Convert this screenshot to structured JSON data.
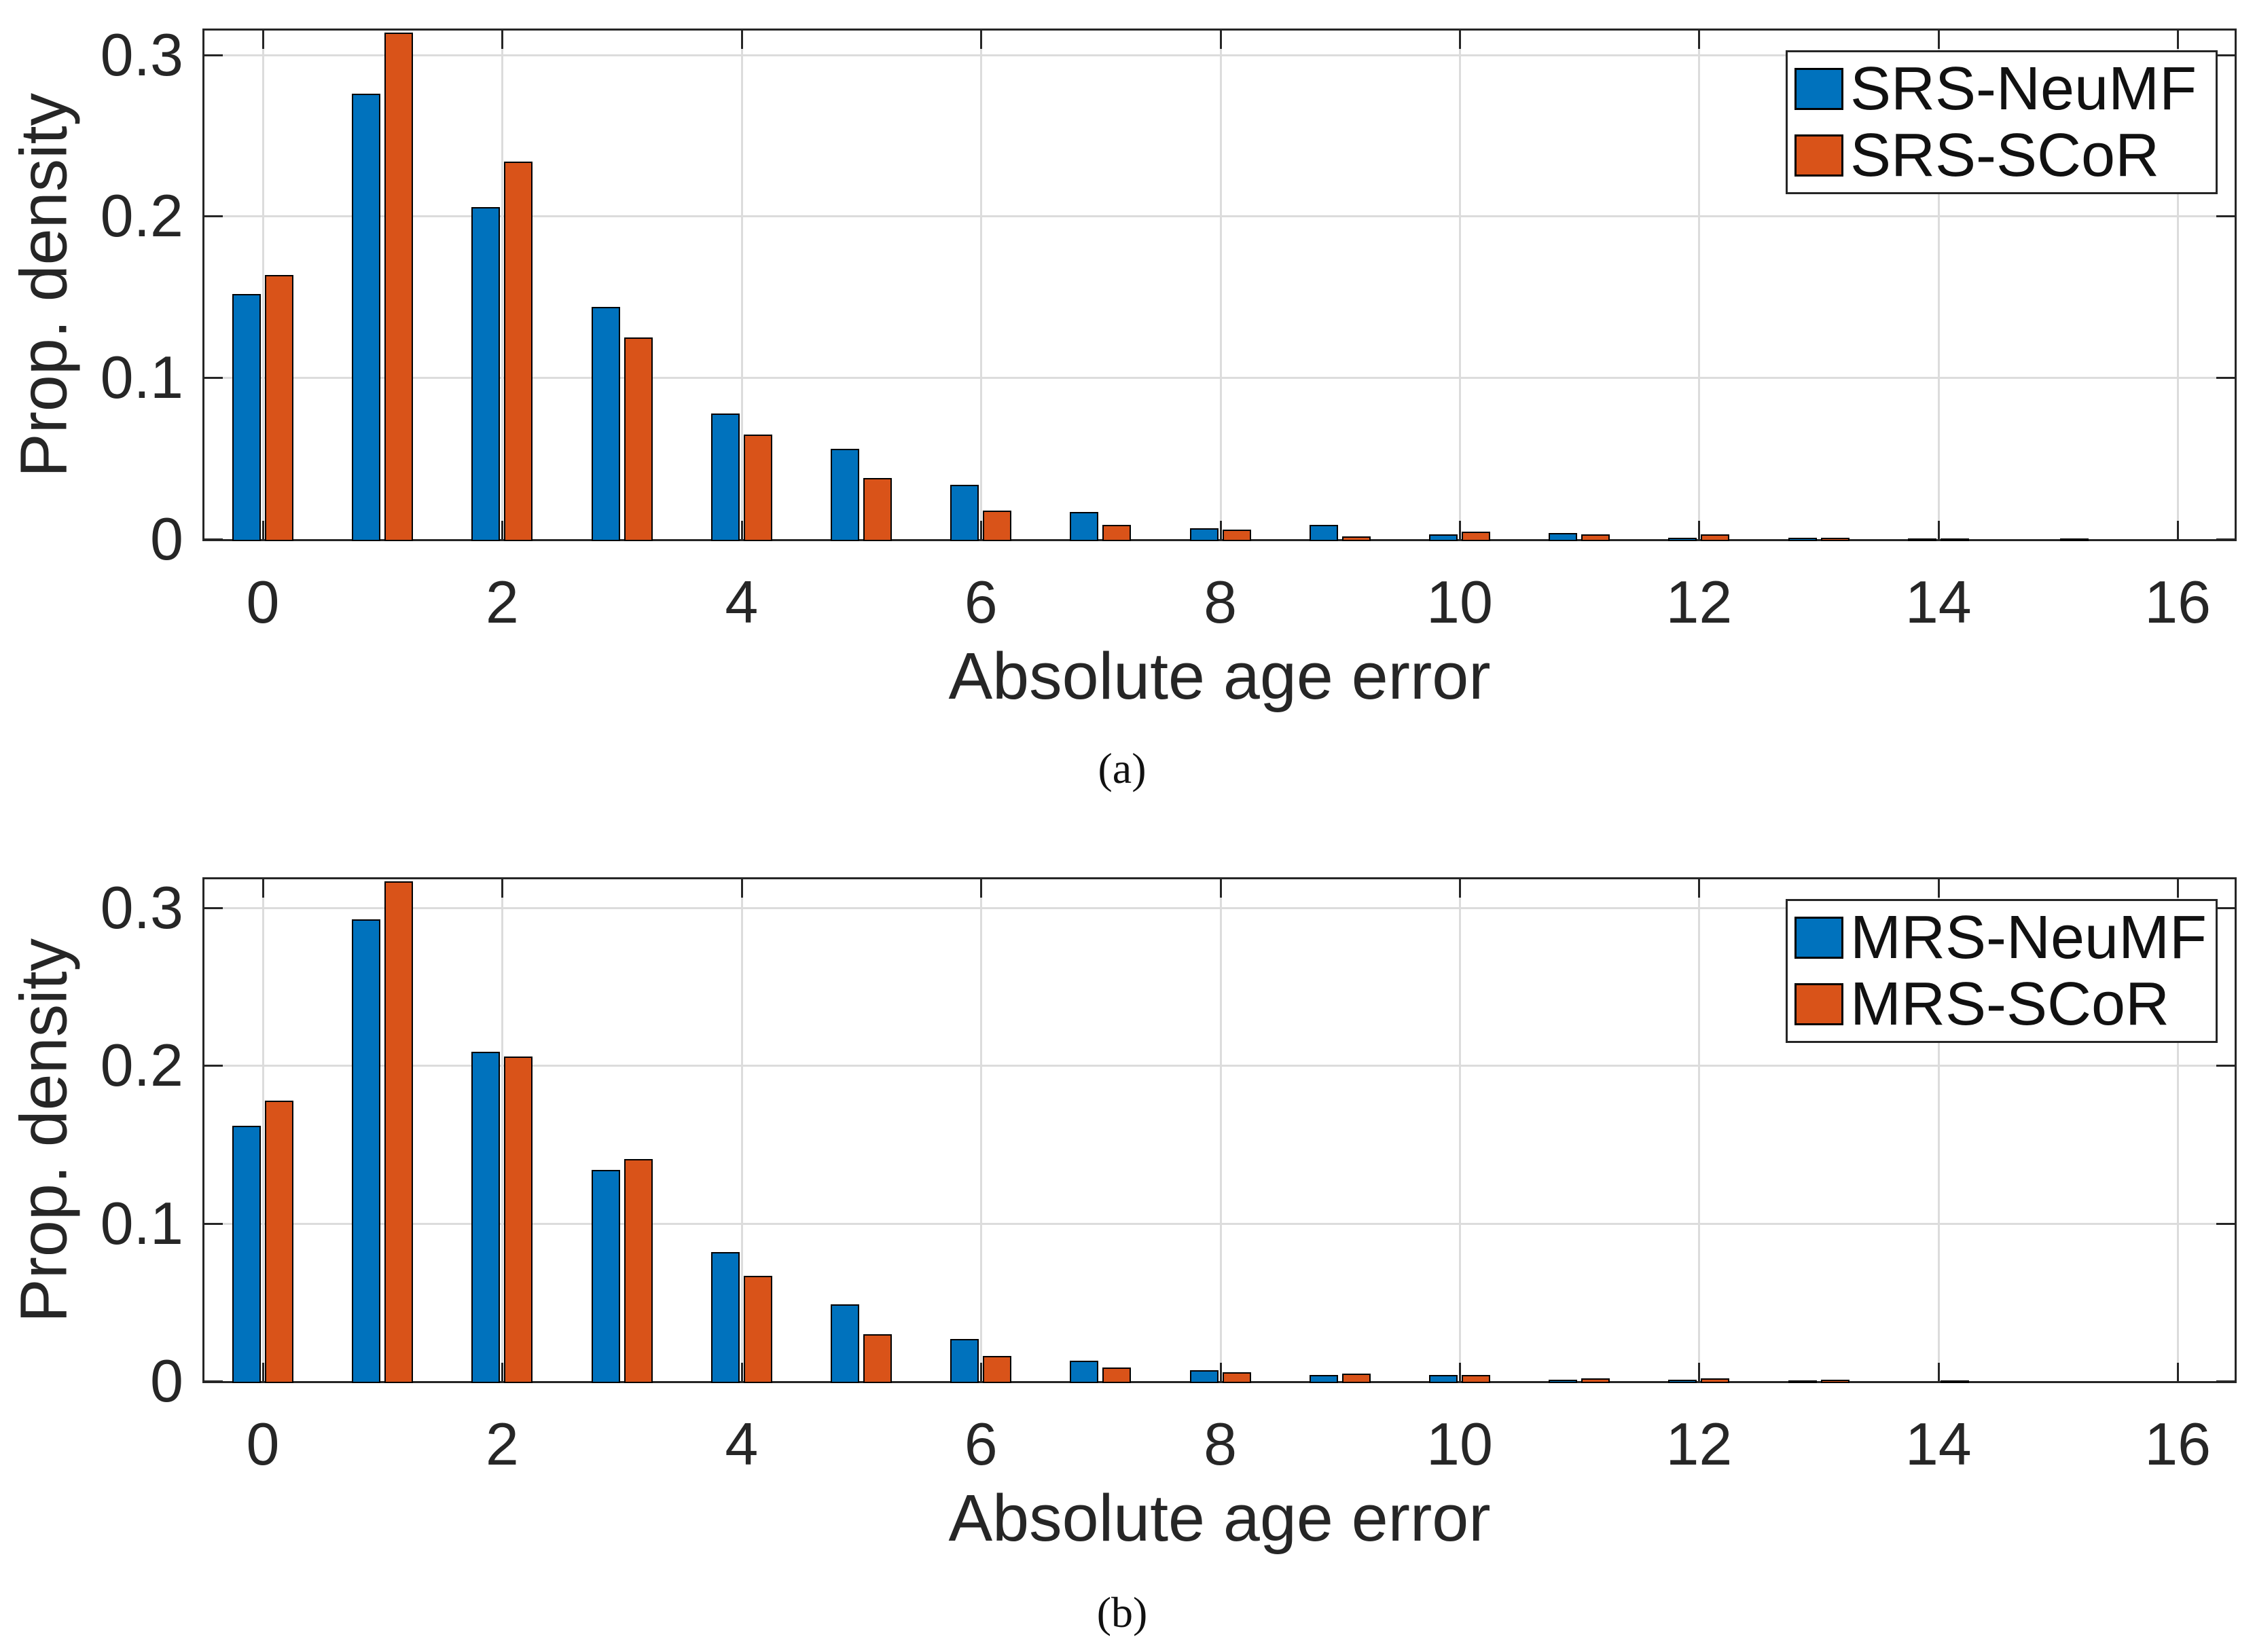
{
  "figure": {
    "background": "#ffffff"
  },
  "colors": {
    "series_blue": "#0072BD",
    "series_orange": "#D95319",
    "axis": "#262626",
    "grid": "#dcdcdc",
    "bar_edge": "#000000"
  },
  "chart_data": [
    {
      "id": "a",
      "type": "bar",
      "caption": "(a)",
      "xlabel": "Absolute age error",
      "ylabel": "Prop. density",
      "x": [
        0,
        1,
        2,
        3,
        4,
        5,
        6,
        7,
        8,
        9,
        10,
        11,
        12,
        13,
        14,
        15,
        16
      ],
      "x_ticks": [
        0,
        2,
        4,
        6,
        8,
        10,
        12,
        14,
        16
      ],
      "x_tick_labels": [
        "0",
        "2",
        "4",
        "6",
        "8",
        "10",
        "12",
        "14",
        "16"
      ],
      "y_ticks": [
        0,
        0.1,
        0.2,
        0.3
      ],
      "y_tick_labels": [
        "0",
        "0.1",
        "0.2",
        "0.3"
      ],
      "xlim": [
        -0.49,
        16.49
      ],
      "ylim": [
        0,
        0.315
      ],
      "grid": true,
      "legend_position": "northeast",
      "series": [
        {
          "name": "SRS-NeuMF",
          "color": "#0072BD",
          "values": [
            0.153,
            0.277,
            0.207,
            0.145,
            0.079,
            0.057,
            0.035,
            0.018,
            0.008,
            0.01,
            0.004,
            0.005,
            0.002,
            0.002,
            0.001,
            0,
            0
          ]
        },
        {
          "name": "SRS-SCoR",
          "color": "#D95319",
          "values": [
            0.165,
            0.315,
            0.235,
            0.126,
            0.066,
            0.039,
            0.019,
            0.01,
            0.007,
            0.003,
            0.006,
            0.004,
            0.004,
            0.002,
            0.001,
            0.001,
            0
          ],
          "note": "bar at x=1 is clipped at the axis top (0.315)"
        }
      ]
    },
    {
      "id": "b",
      "type": "bar",
      "caption": "(b)",
      "xlabel": "Absolute age error",
      "ylabel": "Prop. density",
      "x": [
        0,
        1,
        2,
        3,
        4,
        5,
        6,
        7,
        8,
        9,
        10,
        11,
        12,
        13,
        14,
        15,
        16
      ],
      "x_ticks": [
        0,
        2,
        4,
        6,
        8,
        10,
        12,
        14,
        16
      ],
      "x_tick_labels": [
        "0",
        "2",
        "4",
        "6",
        "8",
        "10",
        "12",
        "14",
        "16"
      ],
      "y_ticks": [
        0,
        0.1,
        0.2,
        0.3
      ],
      "y_tick_labels": [
        "0",
        "0.1",
        "0.2",
        "0.3"
      ],
      "xlim": [
        -0.49,
        16.49
      ],
      "ylim": [
        0,
        0.318
      ],
      "grid": true,
      "legend_position": "northeast",
      "series": [
        {
          "name": "MRS-NeuMF",
          "color": "#0072BD",
          "values": [
            0.163,
            0.294,
            0.21,
            0.135,
            0.083,
            0.05,
            0.028,
            0.014,
            0.008,
            0.005,
            0.005,
            0.002,
            0.002,
            0.001,
            0,
            0,
            0
          ]
        },
        {
          "name": "MRS-SCoR",
          "color": "#D95319",
          "values": [
            0.179,
            0.318,
            0.207,
            0.142,
            0.068,
            0.031,
            0.017,
            0.01,
            0.007,
            0.006,
            0.005,
            0.003,
            0.003,
            0.002,
            0.001,
            0,
            0
          ],
          "note": "bar at x=1 is clipped at the axis top (0.318)"
        }
      ]
    }
  ]
}
